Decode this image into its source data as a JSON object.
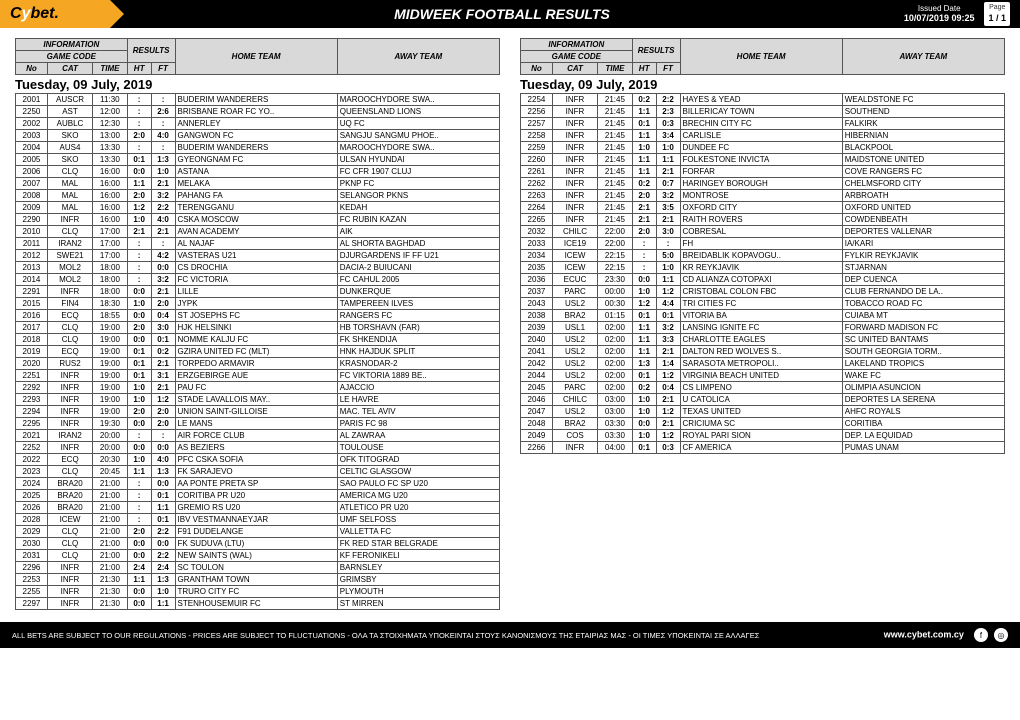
{
  "header": {
    "logo_prefix": "C",
    "logo_y": "y",
    "logo_suffix": "bet",
    "logo_dot": ".",
    "title": "MIDWEEK FOOTBALL RESULTS",
    "issued_label": "Issued Date",
    "issued_value": "10/07/2019 09:25",
    "page_label": "Page",
    "page_value": "1 / 1"
  },
  "columns": {
    "info": "INFORMATION",
    "results": "RESULTS",
    "home": "HOME TEAM",
    "away": "AWAY TEAM",
    "game_code": "GAME CODE",
    "no": "No",
    "cat": "CAT",
    "time": "TIME",
    "ht": "HT",
    "ft": "FT"
  },
  "date_heading": "Tuesday, 09 July, 2019",
  "left": [
    {
      "no": "2001",
      "cat": "AUSCR",
      "time": "11:30",
      "ht": ":",
      "ft": ":",
      "home": "BUDERIM WANDERERS",
      "away": "MAROOCHYDORE SWA.."
    },
    {
      "no": "2250",
      "cat": "AST",
      "time": "12:00",
      "ht": ":",
      "ft": "2:6",
      "home": "BRISBANE ROAR FC YO..",
      "away": "QUEENSLAND LIONS"
    },
    {
      "no": "2002",
      "cat": "AUBLC",
      "time": "12:30",
      "ht": ":",
      "ft": ":",
      "home": "ANNERLEY",
      "away": "UQ FC"
    },
    {
      "no": "2003",
      "cat": "SKO",
      "time": "13:00",
      "ht": "2:0",
      "ft": "4:0",
      "home": "GANGWON FC",
      "away": "SANGJU SANGMU PHOE.."
    },
    {
      "no": "2004",
      "cat": "AUS4",
      "time": "13:30",
      "ht": ":",
      "ft": ":",
      "home": "BUDERIM WANDERERS",
      "away": "MAROOCHYDORE SWA.."
    },
    {
      "no": "2005",
      "cat": "SKO",
      "time": "13:30",
      "ht": "0:1",
      "ft": "1:3",
      "home": "GYEONGNAM FC",
      "away": "ULSAN HYUNDAI"
    },
    {
      "no": "2006",
      "cat": "CLQ",
      "time": "16:00",
      "ht": "0:0",
      "ft": "1:0",
      "home": "ASTANA",
      "away": "FC CFR 1907 CLUJ"
    },
    {
      "no": "2007",
      "cat": "MAL",
      "time": "16:00",
      "ht": "1:1",
      "ft": "2:1",
      "home": "MELAKA",
      "away": "PKNP FC"
    },
    {
      "no": "2008",
      "cat": "MAL",
      "time": "16:00",
      "ht": "2:0",
      "ft": "3:2",
      "home": "PAHANG FA",
      "away": "SELANGOR PKNS"
    },
    {
      "no": "2009",
      "cat": "MAL",
      "time": "16:00",
      "ht": "1:2",
      "ft": "2:2",
      "home": "TERENGGANU",
      "away": "KEDAH"
    },
    {
      "no": "2290",
      "cat": "INFR",
      "time": "16:00",
      "ht": "1:0",
      "ft": "4:0",
      "home": "CSKA MOSCOW",
      "away": "FC RUBIN KAZAN"
    },
    {
      "no": "2010",
      "cat": "CLQ",
      "time": "17:00",
      "ht": "2:1",
      "ft": "2:1",
      "home": "AVAN ACADEMY",
      "away": "AIK"
    },
    {
      "no": "2011",
      "cat": "IRAN2",
      "time": "17:00",
      "ht": ":",
      "ft": ":",
      "home": "AL NAJAF",
      "away": "AL SHORTA BAGHDAD"
    },
    {
      "no": "2012",
      "cat": "SWE21",
      "time": "17:00",
      "ht": ":",
      "ft": "4:2",
      "home": "VASTERAS U21",
      "away": "DJURGARDENS IF FF U21"
    },
    {
      "no": "2013",
      "cat": "MOL2",
      "time": "18:00",
      "ht": ":",
      "ft": "0:0",
      "home": "CS DROCHIA",
      "away": "DACIA-2 BUIUCANI"
    },
    {
      "no": "2014",
      "cat": "MOL2",
      "time": "18:00",
      "ht": ":",
      "ft": "3:2",
      "home": "FC VICTORIA",
      "away": "FC CAHUL 2005"
    },
    {
      "no": "2291",
      "cat": "INFR",
      "time": "18:00",
      "ht": "0:0",
      "ft": "2:1",
      "home": "LILLE",
      "away": "DUNKERQUE"
    },
    {
      "no": "2015",
      "cat": "FIN4",
      "time": "18:30",
      "ht": "1:0",
      "ft": "2:0",
      "home": "JYPK",
      "away": "TAMPEREEN ILVES"
    },
    {
      "no": "2016",
      "cat": "ECQ",
      "time": "18:55",
      "ht": "0:0",
      "ft": "0:4",
      "home": "ST JOSEPHS FC",
      "away": "RANGERS FC"
    },
    {
      "no": "2017",
      "cat": "CLQ",
      "time": "19:00",
      "ht": "2:0",
      "ft": "3:0",
      "home": "HJK HELSINKI",
      "away": "HB TORSHAVN (FAR)"
    },
    {
      "no": "2018",
      "cat": "CLQ",
      "time": "19:00",
      "ht": "0:0",
      "ft": "0:1",
      "home": "NOMME KALJU FC",
      "away": "FK SHKENDIJA"
    },
    {
      "no": "2019",
      "cat": "ECQ",
      "time": "19:00",
      "ht": "0:1",
      "ft": "0:2",
      "home": "GZIRA UNITED FC (MLT)",
      "away": "HNK HAJDUK SPLIT"
    },
    {
      "no": "2020",
      "cat": "RUS2",
      "time": "19:00",
      "ht": "0:1",
      "ft": "2:1",
      "home": "TORPEDO ARMAVIR",
      "away": "KRASNODAR-2"
    },
    {
      "no": "2251",
      "cat": "INFR",
      "time": "19:00",
      "ht": "0:1",
      "ft": "3:1",
      "home": "ERZGEBIRGE AUE",
      "away": "FC VIKTORIA 1889 BE.."
    },
    {
      "no": "2292",
      "cat": "INFR",
      "time": "19:00",
      "ht": "1:0",
      "ft": "2:1",
      "home": "PAU FC",
      "away": "AJACCIO"
    },
    {
      "no": "2293",
      "cat": "INFR",
      "time": "19:00",
      "ht": "1:0",
      "ft": "1:2",
      "home": "STADE LAVALLOIS MAY..",
      "away": "LE HAVRE"
    },
    {
      "no": "2294",
      "cat": "INFR",
      "time": "19:00",
      "ht": "2:0",
      "ft": "2:0",
      "home": "UNION SAINT-GILLOISE",
      "away": "MAC. TEL AVIV"
    },
    {
      "no": "2295",
      "cat": "INFR",
      "time": "19:30",
      "ht": "0:0",
      "ft": "2:0",
      "home": "LE MANS",
      "away": "PARIS FC 98"
    },
    {
      "no": "2021",
      "cat": "IRAN2",
      "time": "20:00",
      "ht": ":",
      "ft": ":",
      "home": "AIR FORCE CLUB",
      "away": "AL ZAWRAA"
    },
    {
      "no": "2252",
      "cat": "INFR",
      "time": "20:00",
      "ht": "0:0",
      "ft": "0:0",
      "home": "AS BEZIERS",
      "away": "TOULOUSE"
    },
    {
      "no": "2022",
      "cat": "ECQ",
      "time": "20:30",
      "ht": "1:0",
      "ft": "4:0",
      "home": "PFC CSKA SOFIA",
      "away": "OFK TITOGRAD"
    },
    {
      "no": "2023",
      "cat": "CLQ",
      "time": "20:45",
      "ht": "1:1",
      "ft": "1:3",
      "home": "FK SARAJEVO",
      "away": "CELTIC GLASGOW"
    },
    {
      "no": "2024",
      "cat": "BRA20",
      "time": "21:00",
      "ht": ":",
      "ft": "0:0",
      "home": "AA PONTE PRETA SP",
      "away": "SAO PAULO FC SP U20"
    },
    {
      "no": "2025",
      "cat": "BRA20",
      "time": "21:00",
      "ht": ":",
      "ft": "0:1",
      "home": "CORITIBA PR U20",
      "away": "AMERICA MG U20"
    },
    {
      "no": "2026",
      "cat": "BRA20",
      "time": "21:00",
      "ht": ":",
      "ft": "1:1",
      "home": "GREMIO RS U20",
      "away": "ATLETICO PR U20"
    },
    {
      "no": "2028",
      "cat": "ICEW",
      "time": "21:00",
      "ht": ":",
      "ft": "0:1",
      "home": "IBV VESTMANNAEYJAR",
      "away": "UMF SELFOSS"
    },
    {
      "no": "2029",
      "cat": "CLQ",
      "time": "21:00",
      "ht": "2:0",
      "ft": "2:2",
      "home": "F91 DUDELANGE",
      "away": "VALLETTA FC"
    },
    {
      "no": "2030",
      "cat": "CLQ",
      "time": "21:00",
      "ht": "0:0",
      "ft": "0:0",
      "home": "FK SUDUVA (LTU)",
      "away": "FK RED STAR BELGRADE"
    },
    {
      "no": "2031",
      "cat": "CLQ",
      "time": "21:00",
      "ht": "0:0",
      "ft": "2:2",
      "home": "NEW SAINTS (WAL)",
      "away": "KF FERONIKELI"
    },
    {
      "no": "2296",
      "cat": "INFR",
      "time": "21:00",
      "ht": "2:4",
      "ft": "2:4",
      "home": "SC TOULON",
      "away": "BARNSLEY"
    },
    {
      "no": "2253",
      "cat": "INFR",
      "time": "21:30",
      "ht": "1:1",
      "ft": "1:3",
      "home": "GRANTHAM TOWN",
      "away": "GRIMSBY"
    },
    {
      "no": "2255",
      "cat": "INFR",
      "time": "21:30",
      "ht": "0:0",
      "ft": "1:0",
      "home": "TRURO CITY FC",
      "away": "PLYMOUTH"
    },
    {
      "no": "2297",
      "cat": "INFR",
      "time": "21:30",
      "ht": "0:0",
      "ft": "1:1",
      "home": "STENHOUSEMUIR FC",
      "away": "ST MIRREN"
    }
  ],
  "right": [
    {
      "no": "2254",
      "cat": "INFR",
      "time": "21:45",
      "ht": "0:2",
      "ft": "2:2",
      "home": "HAYES & YEAD",
      "away": "WEALDSTONE FC"
    },
    {
      "no": "2256",
      "cat": "INFR",
      "time": "21:45",
      "ht": "1:1",
      "ft": "2:3",
      "home": "BILLERICAY TOWN",
      "away": "SOUTHEND"
    },
    {
      "no": "2257",
      "cat": "INFR",
      "time": "21:45",
      "ht": "0:1",
      "ft": "0:3",
      "home": "BRECHIN CITY FC",
      "away": "FALKIRK"
    },
    {
      "no": "2258",
      "cat": "INFR",
      "time": "21:45",
      "ht": "1:1",
      "ft": "3:4",
      "home": "CARLISLE",
      "away": "HIBERNIAN"
    },
    {
      "no": "2259",
      "cat": "INFR",
      "time": "21:45",
      "ht": "1:0",
      "ft": "1:0",
      "home": "DUNDEE FC",
      "away": "BLACKPOOL"
    },
    {
      "no": "2260",
      "cat": "INFR",
      "time": "21:45",
      "ht": "1:1",
      "ft": "1:1",
      "home": "FOLKESTONE INVICTA",
      "away": "MAIDSTONE UNITED"
    },
    {
      "no": "2261",
      "cat": "INFR",
      "time": "21:45",
      "ht": "1:1",
      "ft": "2:1",
      "home": "FORFAR",
      "away": "COVE RANGERS FC"
    },
    {
      "no": "2262",
      "cat": "INFR",
      "time": "21:45",
      "ht": "0:2",
      "ft": "0:7",
      "home": "HARINGEY BOROUGH",
      "away": "CHELMSFORD CITY"
    },
    {
      "no": "2263",
      "cat": "INFR",
      "time": "21:45",
      "ht": "2:0",
      "ft": "3:2",
      "home": "MONTROSE",
      "away": "ARBROATH"
    },
    {
      "no": "2264",
      "cat": "INFR",
      "time": "21:45",
      "ht": "2:1",
      "ft": "3:5",
      "home": "OXFORD CITY",
      "away": "OXFORD UNITED"
    },
    {
      "no": "2265",
      "cat": "INFR",
      "time": "21:45",
      "ht": "2:1",
      "ft": "2:1",
      "home": "RAITH ROVERS",
      "away": "COWDENBEATH"
    },
    {
      "no": "2032",
      "cat": "CHILC",
      "time": "22:00",
      "ht": "2:0",
      "ft": "3:0",
      "home": "COBRESAL",
      "away": "DEPORTES VALLENAR"
    },
    {
      "no": "2033",
      "cat": "ICE19",
      "time": "22:00",
      "ht": ":",
      "ft": ":",
      "home": "FH",
      "away": "IA/KARI"
    },
    {
      "no": "2034",
      "cat": "ICEW",
      "time": "22:15",
      "ht": ":",
      "ft": "5:0",
      "home": "BREIDABLIK KOPAVOGU..",
      "away": "FYLKIR REYKJAVIK"
    },
    {
      "no": "2035",
      "cat": "ICEW",
      "time": "22:15",
      "ht": ":",
      "ft": "1:0",
      "home": "KR REYKJAVIK",
      "away": "STJARNAN"
    },
    {
      "no": "2036",
      "cat": "ECUC",
      "time": "23:30",
      "ht": "0:0",
      "ft": "1:1",
      "home": "CD ALIANZA COTOPAXI",
      "away": "DEP CUENCA"
    },
    {
      "no": "2037",
      "cat": "PARC",
      "time": "00:00",
      "ht": "1:0",
      "ft": "1:2",
      "home": "CRISTOBAL COLON FBC",
      "away": "CLUB FERNANDO DE LA.."
    },
    {
      "no": "2043",
      "cat": "USL2",
      "time": "00:30",
      "ht": "1:2",
      "ft": "4:4",
      "home": "TRI CITIES FC",
      "away": "TOBACCO ROAD FC"
    },
    {
      "no": "2038",
      "cat": "BRA2",
      "time": "01:15",
      "ht": "0:1",
      "ft": "0:1",
      "home": "VITORIA BA",
      "away": "CUIABA MT"
    },
    {
      "no": "2039",
      "cat": "USL1",
      "time": "02:00",
      "ht": "1:1",
      "ft": "3:2",
      "home": "LANSING IGNITE FC",
      "away": "FORWARD MADISON FC"
    },
    {
      "no": "2040",
      "cat": "USL2",
      "time": "02:00",
      "ht": "1:1",
      "ft": "3:3",
      "home": "CHARLOTTE EAGLES",
      "away": "SC UNITED BANTAMS"
    },
    {
      "no": "2041",
      "cat": "USL2",
      "time": "02:00",
      "ht": "1:1",
      "ft": "2:1",
      "home": "DALTON RED WOLVES S..",
      "away": "SOUTH GEORGIA TORM.."
    },
    {
      "no": "2042",
      "cat": "USL2",
      "time": "02:00",
      "ht": "1:3",
      "ft": "1:4",
      "home": "SARASOTA METROPOLI..",
      "away": "LAKELAND TROPICS"
    },
    {
      "no": "2044",
      "cat": "USL2",
      "time": "02:00",
      "ht": "0:1",
      "ft": "1:2",
      "home": "VIRGINIA BEACH UNITED",
      "away": "WAKE FC"
    },
    {
      "no": "2045",
      "cat": "PARC",
      "time": "02:00",
      "ht": "0:2",
      "ft": "0:4",
      "home": "CS LIMPENO",
      "away": "OLIMPIA ASUNCION"
    },
    {
      "no": "2046",
      "cat": "CHILC",
      "time": "03:00",
      "ht": "1:0",
      "ft": "2:1",
      "home": "U CATOLICA",
      "away": "DEPORTES LA SERENA"
    },
    {
      "no": "2047",
      "cat": "USL2",
      "time": "03:00",
      "ht": "1:0",
      "ft": "1:2",
      "home": "TEXAS UNITED",
      "away": "AHFC ROYALS"
    },
    {
      "no": "2048",
      "cat": "BRA2",
      "time": "03:30",
      "ht": "0:0",
      "ft": "2:1",
      "home": "CRICIUMA SC",
      "away": "CORITIBA"
    },
    {
      "no": "2049",
      "cat": "COS",
      "time": "03:30",
      "ht": "1:0",
      "ft": "1:2",
      "home": "ROYAL PARI SION",
      "away": "DEP. LA EQUIDAD"
    },
    {
      "no": "2266",
      "cat": "INFR",
      "time": "04:00",
      "ht": "0:1",
      "ft": "0:3",
      "home": "CF AMERICA",
      "away": "PUMAS UNAM"
    }
  ],
  "footer": {
    "disclaimer": "ALL BETS ARE SUBJECT TO OUR REGULATIONS - PRICES ARE SUBJECT TO FLUCTUATIONS - ΟΛΑ ΤΑ ΣΤΟΙΧΗΜΑΤΑ ΥΠΟΚΕΙΝΤΑΙ ΣΤΟΥΣ ΚΑΝΟΝΙΣΜΟΥΣ ΤΗΣ ΕΤΑΙΡΙΑΣ ΜΑΣ - ΟΙ ΤΙΜΕΣ ΥΠΟΚΕΙΝΤΑΙ ΣΕ ΑΛΛΑΓΕΣ",
    "site": "www.cybet.com.cy",
    "fb": "f",
    "ig": "◎"
  }
}
